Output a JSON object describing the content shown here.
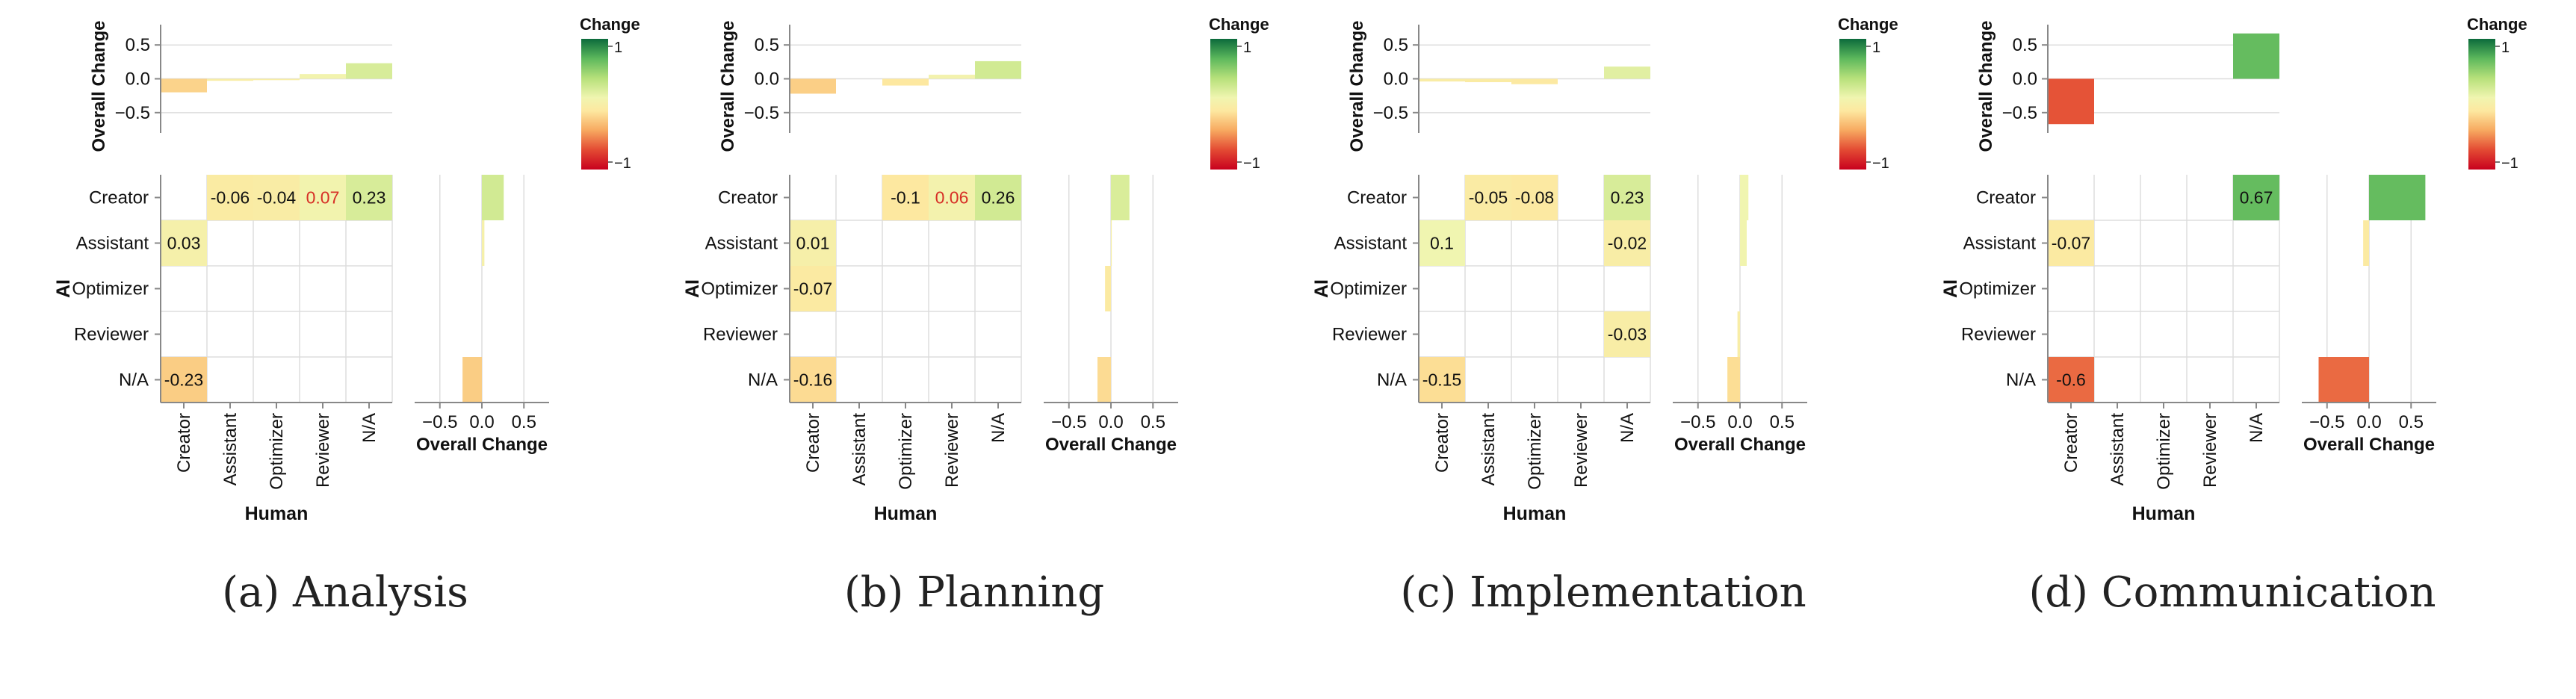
{
  "shared": {
    "x_categories": [
      "Creator",
      "Assistant",
      "Optimizer",
      "Reviewer",
      "N/A"
    ],
    "y_categories": [
      "Creator",
      "Assistant",
      "Optimizer",
      "Reviewer",
      "N/A"
    ],
    "xlabel": "Human",
    "ylabel": "AI",
    "top_ylabel": "Overall Change",
    "right_xlabel": "Overall Change",
    "top_yticks": [
      0.5,
      0.0,
      -0.5
    ],
    "top_ytick_labels": [
      "0.5",
      "0.0",
      "−0.5"
    ],
    "right_xticks": [
      -0.5,
      0.0,
      0.5
    ],
    "right_xtick_labels": [
      "−0.5",
      "0.0",
      "0.5"
    ],
    "overall_range": [
      -0.8,
      0.8
    ],
    "legend_title": "Change",
    "legend_max_label": "1",
    "legend_min_label": "−1",
    "color_range": [
      -1,
      1
    ],
    "highlight_color": "#d73027"
  },
  "chart_data": [
    {
      "type": "heatmap",
      "caption": "(a) Analysis",
      "cells": [
        {
          "ai": "Creator",
          "human": "Assistant",
          "value": -0.06,
          "label": "-0.06"
        },
        {
          "ai": "Creator",
          "human": "Optimizer",
          "value": -0.04,
          "label": "-0.04"
        },
        {
          "ai": "Creator",
          "human": "Reviewer",
          "value": 0.07,
          "label": "0.07",
          "highlight": true
        },
        {
          "ai": "Creator",
          "human": "N/A",
          "value": 0.23,
          "label": "0.23"
        },
        {
          "ai": "Assistant",
          "human": "Creator",
          "value": 0.03,
          "label": "0.03"
        },
        {
          "ai": "N/A",
          "human": "Creator",
          "value": -0.23,
          "label": "-0.23"
        }
      ],
      "top_bars": [
        -0.2,
        -0.03,
        -0.02,
        0.07,
        0.23
      ],
      "right_bars": [
        0.26,
        0.03,
        0.0,
        0.0,
        -0.23
      ]
    },
    {
      "type": "heatmap",
      "caption": "(b) Planning",
      "cells": [
        {
          "ai": "Creator",
          "human": "Optimizer",
          "value": -0.1,
          "label": "-0.1"
        },
        {
          "ai": "Creator",
          "human": "Reviewer",
          "value": 0.06,
          "label": "0.06",
          "highlight": true
        },
        {
          "ai": "Creator",
          "human": "N/A",
          "value": 0.26,
          "label": "0.26"
        },
        {
          "ai": "Assistant",
          "human": "Creator",
          "value": 0.01,
          "label": "0.01"
        },
        {
          "ai": "Optimizer",
          "human": "Creator",
          "value": -0.07,
          "label": "-0.07"
        },
        {
          "ai": "N/A",
          "human": "Creator",
          "value": -0.16,
          "label": "-0.16"
        }
      ],
      "top_bars": [
        -0.22,
        0.0,
        -0.1,
        0.06,
        0.26
      ],
      "right_bars": [
        0.22,
        0.01,
        -0.07,
        0.0,
        -0.16
      ]
    },
    {
      "type": "heatmap",
      "caption": "(c) Implementation",
      "cells": [
        {
          "ai": "Creator",
          "human": "Assistant",
          "value": -0.05,
          "label": "-0.05"
        },
        {
          "ai": "Creator",
          "human": "Optimizer",
          "value": -0.08,
          "label": "-0.08"
        },
        {
          "ai": "Creator",
          "human": "N/A",
          "value": 0.23,
          "label": "0.23"
        },
        {
          "ai": "Assistant",
          "human": "Creator",
          "value": 0.1,
          "label": "0.1"
        },
        {
          "ai": "Assistant",
          "human": "N/A",
          "value": -0.02,
          "label": "-0.02"
        },
        {
          "ai": "Reviewer",
          "human": "N/A",
          "value": -0.03,
          "label": "-0.03"
        },
        {
          "ai": "N/A",
          "human": "Creator",
          "value": -0.15,
          "label": "-0.15"
        }
      ],
      "top_bars": [
        -0.04,
        -0.05,
        -0.08,
        0.0,
        0.18
      ],
      "right_bars": [
        0.1,
        0.08,
        0.0,
        -0.03,
        -0.15
      ]
    },
    {
      "type": "heatmap",
      "caption": "(d) Communication",
      "cells": [
        {
          "ai": "Creator",
          "human": "N/A",
          "value": 0.67,
          "label": "0.67"
        },
        {
          "ai": "Assistant",
          "human": "Creator",
          "value": -0.07,
          "label": "-0.07"
        },
        {
          "ai": "N/A",
          "human": "Creator",
          "value": -0.6,
          "label": "-0.6"
        }
      ],
      "top_bars": [
        -0.67,
        0.0,
        0.0,
        0.0,
        0.67
      ],
      "right_bars": [
        0.67,
        -0.07,
        0.0,
        0.0,
        -0.6
      ]
    }
  ]
}
